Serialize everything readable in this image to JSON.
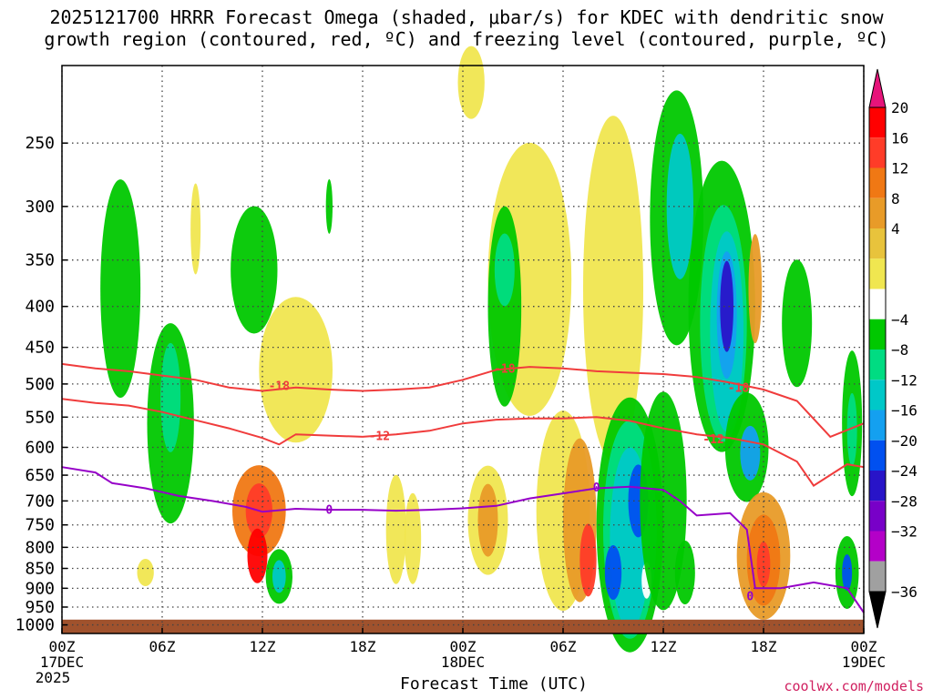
{
  "chart_data": {
    "type": "heatmap",
    "title_line1": "2025121700 HRRR Forecast Omega (shaded, μbar/s) for KDEC with dendritic snow",
    "title_line2": "growth region (contoured, red, ºC) and freezing level (contoured, purple, ºC)",
    "xlabel": "Forecast Time (UTC)",
    "ylabel": "",
    "credit": "coolwx.com/models",
    "x_ticks": [
      {
        "hour": 0,
        "label": "00Z",
        "sub1": "17DEC",
        "sub2": "2025"
      },
      {
        "hour": 6,
        "label": "06Z",
        "sub1": "",
        "sub2": ""
      },
      {
        "hour": 12,
        "label": "12Z",
        "sub1": "",
        "sub2": ""
      },
      {
        "hour": 18,
        "label": "18Z",
        "sub1": "",
        "sub2": ""
      },
      {
        "hour": 24,
        "label": "00Z",
        "sub1": "18DEC",
        "sub2": ""
      },
      {
        "hour": 30,
        "label": "06Z",
        "sub1": "",
        "sub2": ""
      },
      {
        "hour": 36,
        "label": "12Z",
        "sub1": "",
        "sub2": ""
      },
      {
        "hour": 42,
        "label": "18Z",
        "sub1": "",
        "sub2": ""
      },
      {
        "hour": 48,
        "label": "00Z",
        "sub1": "19DEC",
        "sub2": ""
      }
    ],
    "x_range": [
      0,
      48
    ],
    "y_ticks": [
      250,
      300,
      350,
      400,
      450,
      500,
      550,
      600,
      650,
      700,
      750,
      800,
      850,
      900,
      950,
      1000
    ],
    "y_range_hpa": [
      200,
      1025
    ],
    "colorbar": {
      "labels": [
        "20",
        "16",
        "12",
        "8",
        "4",
        "−4",
        "−8",
        "−12",
        "−16",
        "−20",
        "−24",
        "−28",
        "−32",
        "−36"
      ],
      "colors": [
        "#ff0000",
        "#ff3c28",
        "#f07814",
        "#e89b28",
        "#e8c33c",
        "#f0e650",
        "#ffffff",
        "#00c800",
        "#00dc82",
        "#00c8c8",
        "#14a0f0",
        "#0050f0",
        "#2814c8",
        "#7800c8",
        "#b400c8",
        "#a0a0a0"
      ],
      "top_cap_color": "#e6147a",
      "bottom_cap_color": "#000000"
    },
    "contours": {
      "dgz_red": [
        {
          "label": "-18",
          "points": [
            [
              0,
              472
            ],
            [
              2,
              478
            ],
            [
              4,
              482
            ],
            [
              6,
              488
            ],
            [
              8,
              494
            ],
            [
              10,
              505
            ],
            [
              12,
              510
            ],
            [
              14,
              505
            ],
            [
              16,
              508
            ],
            [
              18,
              510
            ],
            [
              20,
              508
            ],
            [
              22,
              505
            ],
            [
              24,
              494
            ],
            [
              26,
              480
            ],
            [
              28,
              476
            ],
            [
              30,
              478
            ],
            [
              32,
              482
            ],
            [
              34,
              484
            ],
            [
              36,
              486
            ],
            [
              38,
              490
            ],
            [
              40,
              498
            ],
            [
              42,
              508
            ],
            [
              44,
              525
            ],
            [
              46,
              582
            ],
            [
              48,
              560
            ]
          ],
          "label_at": [
            [
              13,
              502
            ],
            [
              26.5,
              478
            ],
            [
              40.5,
              505
            ]
          ]
        },
        {
          "label": "-12",
          "points": [
            [
              0,
              522
            ],
            [
              2,
              528
            ],
            [
              4,
              532
            ],
            [
              6,
              542
            ],
            [
              8,
              555
            ],
            [
              10,
              568
            ],
            [
              12,
              584
            ],
            [
              13,
              595
            ],
            [
              14,
              578
            ],
            [
              16,
              580
            ],
            [
              18,
              582
            ],
            [
              20,
              578
            ],
            [
              22,
              572
            ],
            [
              24,
              560
            ],
            [
              26,
              554
            ],
            [
              28,
              552
            ],
            [
              30,
              552
            ],
            [
              32,
              550
            ],
            [
              34,
              556
            ],
            [
              36,
              568
            ],
            [
              38,
              578
            ],
            [
              40,
              584
            ],
            [
              42,
              595
            ],
            [
              44,
              625
            ],
            [
              45,
              670
            ],
            [
              47,
              630
            ],
            [
              48,
              635
            ]
          ],
          "label_at": [
            [
              19,
              580
            ],
            [
              39,
              585
            ]
          ]
        }
      ],
      "freezing_purple": [
        {
          "label": "0",
          "points": [
            [
              0,
              635
            ],
            [
              2,
              645
            ],
            [
              3,
              665
            ],
            [
              5,
              675
            ],
            [
              7,
              690
            ],
            [
              9,
              700
            ],
            [
              11,
              712
            ],
            [
              12,
              722
            ],
            [
              14,
              716
            ],
            [
              16,
              718
            ],
            [
              18,
              718
            ],
            [
              20,
              720
            ],
            [
              22,
              718
            ],
            [
              24,
              715
            ],
            [
              26,
              710
            ],
            [
              28,
              695
            ],
            [
              30,
              685
            ],
            [
              32,
              675
            ],
            [
              34,
              672
            ],
            [
              36,
              678
            ],
            [
              37,
              700
            ],
            [
              38,
              730
            ],
            [
              40,
              725
            ],
            [
              41,
              760
            ],
            [
              41.5,
              900
            ],
            [
              43,
              900
            ],
            [
              45,
              885
            ],
            [
              47,
              900
            ],
            [
              48,
              965
            ]
          ],
          "label_at": [
            [
              16,
              717
            ],
            [
              32,
              672
            ],
            [
              41.2,
              920
            ]
          ]
        }
      ]
    }
  }
}
